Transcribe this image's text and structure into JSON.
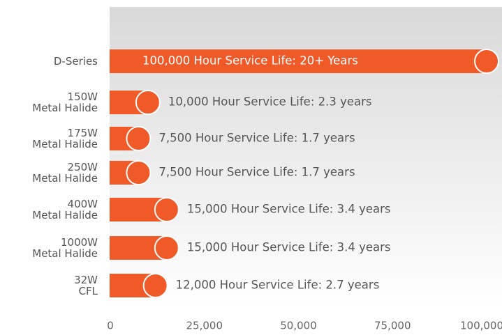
{
  "chart_data": {
    "type": "bar",
    "orientation": "horizontal",
    "categories": [
      [
        "D-Series"
      ],
      [
        "150W",
        "Metal Halide"
      ],
      [
        "175W",
        "Metal Halide"
      ],
      [
        "250W",
        "Metal Halide"
      ],
      [
        "400W",
        "Metal Halide"
      ],
      [
        "1000W",
        "Metal Halide"
      ],
      [
        "32W",
        "CFL"
      ]
    ],
    "values": [
      100000,
      10000,
      7500,
      7500,
      15000,
      15000,
      12000
    ],
    "value_labels": [
      "100,000 Hour Service Life: 20+ Years",
      "10,000 Hour Service Life: 2.3 years",
      "7,500 Hour Service Life: 1.7 years",
      "7,500 Hour Service Life: 1.7 years",
      "15,000 Hour Service Life: 3.4 years",
      "15,000 Hour Service Life: 3.4 years",
      "12,000 Hour Service Life: 2.7 years"
    ],
    "color": "#f05a28",
    "xlim": [
      0,
      100000
    ],
    "xticks": [
      0,
      {
        "value": 25000,
        "label": "25,000"
      },
      {
        "value": 50000,
        "label": "50,000"
      },
      {
        "value": 75000,
        "label": "75,000"
      },
      {
        "value": 100000,
        "label": "100,000"
      }
    ]
  }
}
